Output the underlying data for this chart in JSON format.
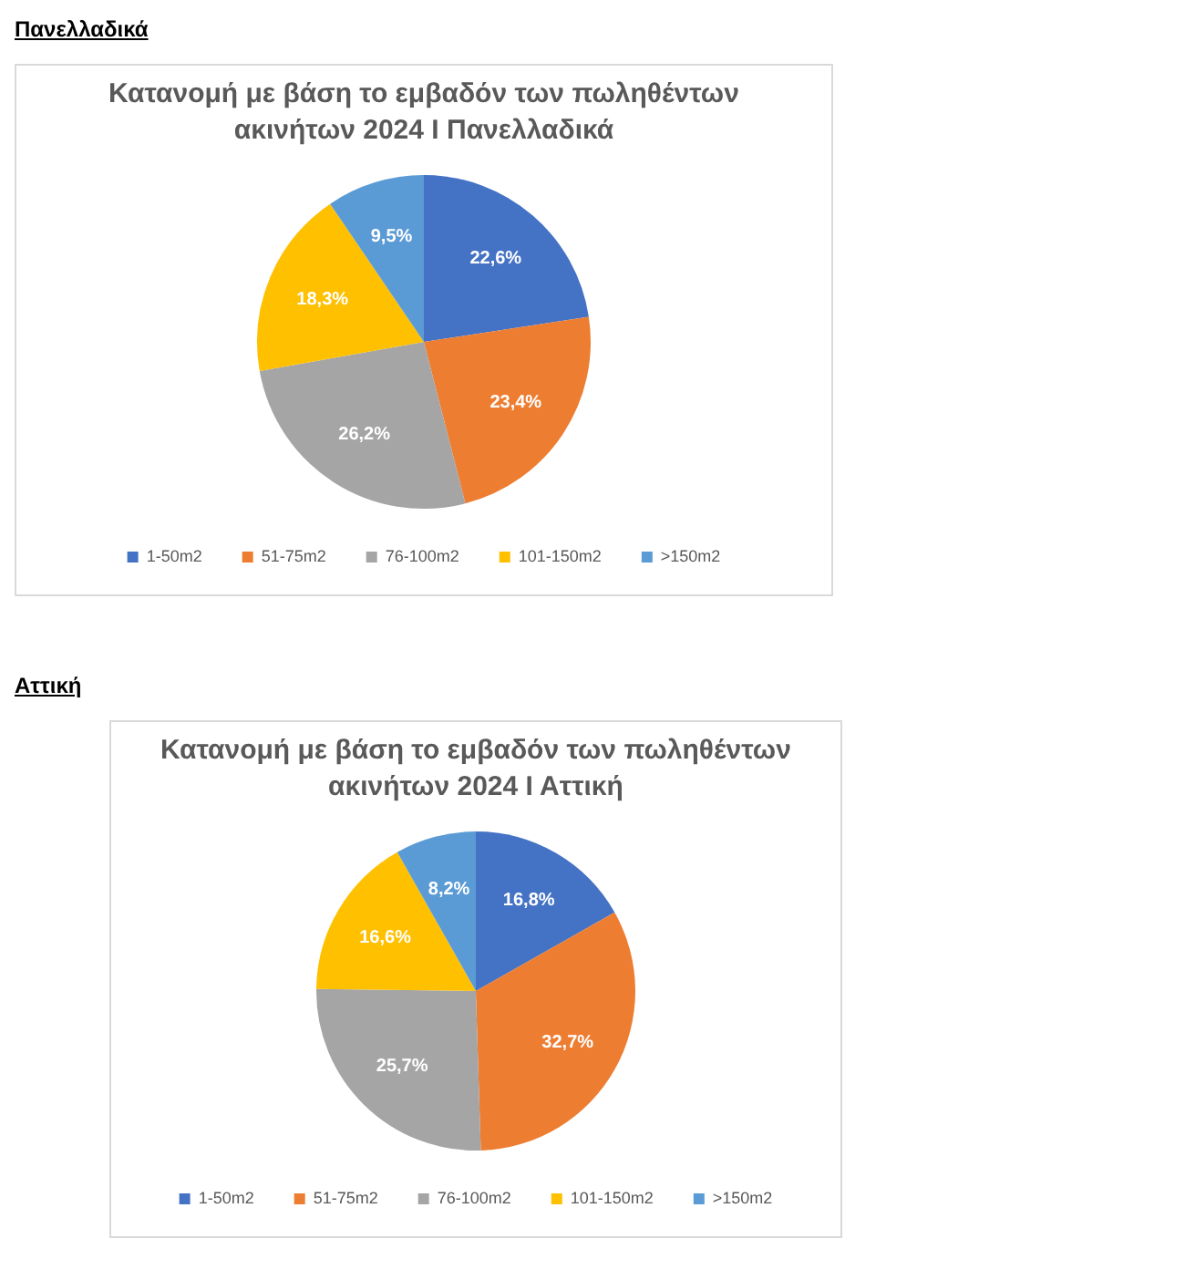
{
  "chart_data": [
    {
      "type": "pie",
      "title": "Κατανομή με βάση το εμβαδόν των πωληθέντων ακινήτων 2024 Ι Πανελλαδικά",
      "annotations": [
        "Πανελλαδικά"
      ],
      "categories": [
        "1-50m2",
        "51-75m2",
        "76-100m2",
        "101-150m2",
        ">150m2"
      ],
      "values": [
        22.6,
        23.4,
        26.2,
        18.3,
        9.5
      ],
      "value_labels": [
        "22,6%",
        "23,4%",
        "26,2%",
        "18,3%",
        "9,5%"
      ],
      "colors": [
        "#4472c4",
        "#ed7d31",
        "#a5a5a5",
        "#ffc000",
        "#5b9bd5"
      ],
      "legend": "bottom"
    },
    {
      "type": "pie",
      "title": "Κατανομή με βάση το εμβαδόν των πωληθέντων ακινήτων 2024 Ι Αττική",
      "annotations": [
        "Αττική"
      ],
      "categories": [
        "1-50m2",
        "51-75m2",
        "76-100m2",
        "101-150m2",
        ">150m2"
      ],
      "values": [
        16.8,
        32.7,
        25.7,
        16.6,
        8.2
      ],
      "value_labels": [
        "16,8%",
        "32,7%",
        "25,7%",
        "16,6%",
        "8,2%"
      ],
      "colors": [
        "#4472c4",
        "#ed7d31",
        "#a5a5a5",
        "#ffc000",
        "#5b9bd5"
      ],
      "legend": "bottom"
    }
  ]
}
